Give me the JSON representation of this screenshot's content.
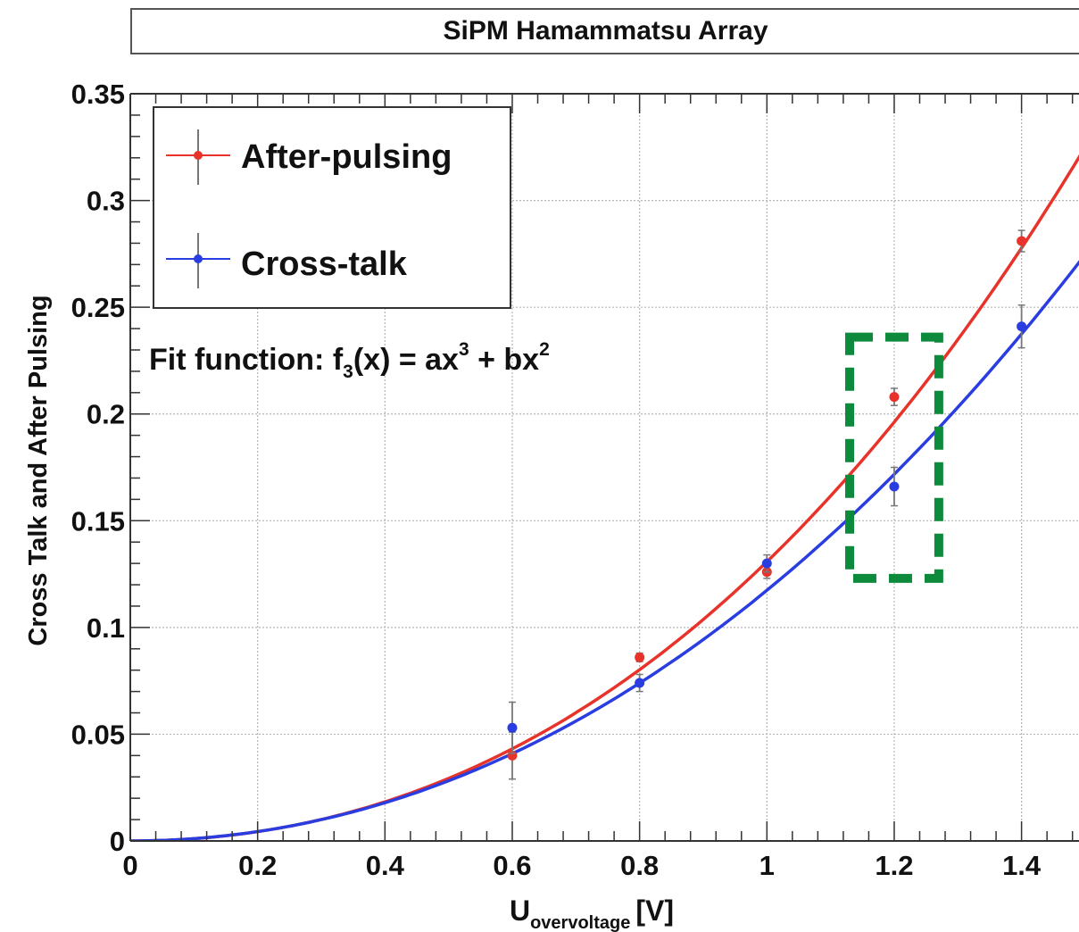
{
  "colors": {
    "after_pulsing": "#e8332a",
    "cross_talk": "#2a3de0",
    "highlight_box": "#0e8a3c",
    "grid": "#b5b5b5",
    "frame": "#333333"
  },
  "chart_data": {
    "type": "scatter",
    "title": "SiPM Hamammatsu Array",
    "xlabel": {
      "main": "U",
      "sub": "overvoltage",
      "unit": "[V]"
    },
    "ylabel": "Cross Talk and After Pulsing",
    "xlim": [
      0,
      1.5
    ],
    "ylim": [
      0,
      0.35
    ],
    "x_ticks": [
      {
        "value": 0,
        "label": "0"
      },
      {
        "value": 0.2,
        "label": "0.2"
      },
      {
        "value": 0.4,
        "label": "0.4"
      },
      {
        "value": 0.6,
        "label": "0.6"
      },
      {
        "value": 0.8,
        "label": "0.8"
      },
      {
        "value": 1.0,
        "label": "1"
      },
      {
        "value": 1.2,
        "label": "1.2"
      },
      {
        "value": 1.4,
        "label": "1.4"
      }
    ],
    "y_ticks": [
      {
        "value": 0,
        "label": "0"
      },
      {
        "value": 0.05,
        "label": "0.05"
      },
      {
        "value": 0.1,
        "label": "0.1"
      },
      {
        "value": 0.15,
        "label": "0.15"
      },
      {
        "value": 0.2,
        "label": "0.2"
      },
      {
        "value": 0.25,
        "label": "0.25"
      },
      {
        "value": 0.3,
        "label": "0.3"
      },
      {
        "value": 0.35,
        "label": "0.35"
      }
    ],
    "grid": true,
    "legend_position": "top-left",
    "series": [
      {
        "name": "After-pulsing",
        "color": "#e8332a",
        "points": [
          {
            "x": 0.6,
            "y": 0.04,
            "err": 0.011
          },
          {
            "x": 0.8,
            "y": 0.086,
            "err": 0.002
          },
          {
            "x": 1.0,
            "y": 0.126,
            "err": 0.003
          },
          {
            "x": 1.2,
            "y": 0.208,
            "err": 0.004
          },
          {
            "x": 1.4,
            "y": 0.281,
            "err": 0.005
          }
        ],
        "fit": {
          "a": 0.0273,
          "b": 0.1035
        }
      },
      {
        "name": "Cross-talk",
        "color": "#2a3de0",
        "points": [
          {
            "x": 0.6,
            "y": 0.053,
            "err": 0.012
          },
          {
            "x": 0.8,
            "y": 0.074,
            "err": 0.004
          },
          {
            "x": 1.0,
            "y": 0.13,
            "err": 0.004
          },
          {
            "x": 1.2,
            "y": 0.166,
            "err": 0.009
          },
          {
            "x": 1.4,
            "y": 0.241,
            "err": 0.01
          }
        ],
        "fit": {
          "a": 0.0094,
          "b": 0.108
        }
      }
    ],
    "annotations": [
      {
        "text_parts": [
          "Fit function: f",
          "3",
          "(x) = ax",
          "3",
          " + bx",
          "2"
        ]
      }
    ],
    "highlight": {
      "x_range": [
        1.13,
        1.27
      ],
      "y_range": [
        0.123,
        0.236
      ],
      "style": "dashed"
    }
  }
}
